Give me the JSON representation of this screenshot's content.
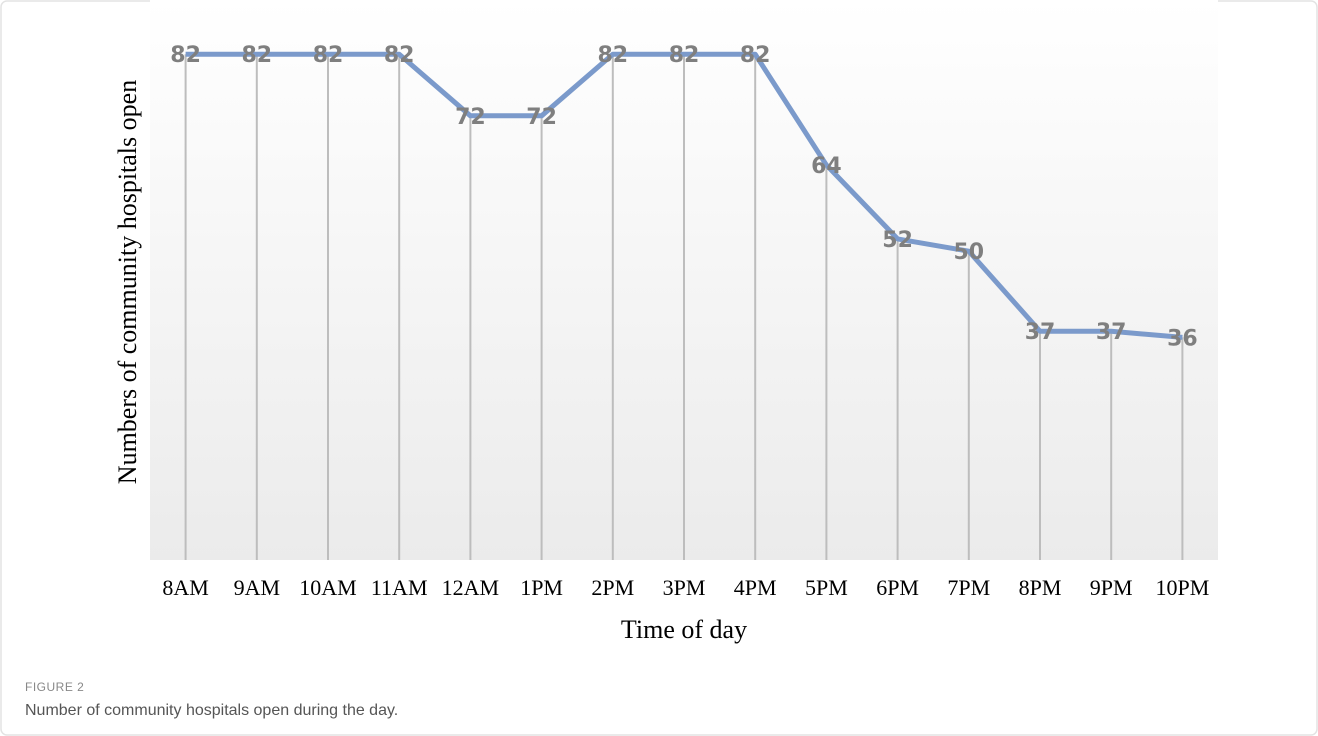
{
  "chart_data": {
    "type": "line",
    "x_label": "Time of day",
    "y_label": "Numbers of community hospitals open",
    "categories": [
      "8AM",
      "9AM",
      "10AM",
      "11AM",
      "12AM",
      "1PM",
      "2PM",
      "3PM",
      "4PM",
      "5PM",
      "6PM",
      "7PM",
      "8PM",
      "9PM",
      "10PM"
    ],
    "values": [
      82,
      82,
      82,
      82,
      72,
      72,
      82,
      82,
      82,
      64,
      52,
      50,
      37,
      37,
      36
    ],
    "color": "#7b9acb",
    "ylim": [
      0,
      90
    ],
    "drop_lines": true,
    "data_labels": true
  },
  "figure": {
    "label": "FIGURE 2",
    "caption": "Number of community hospitals open during the day."
  }
}
